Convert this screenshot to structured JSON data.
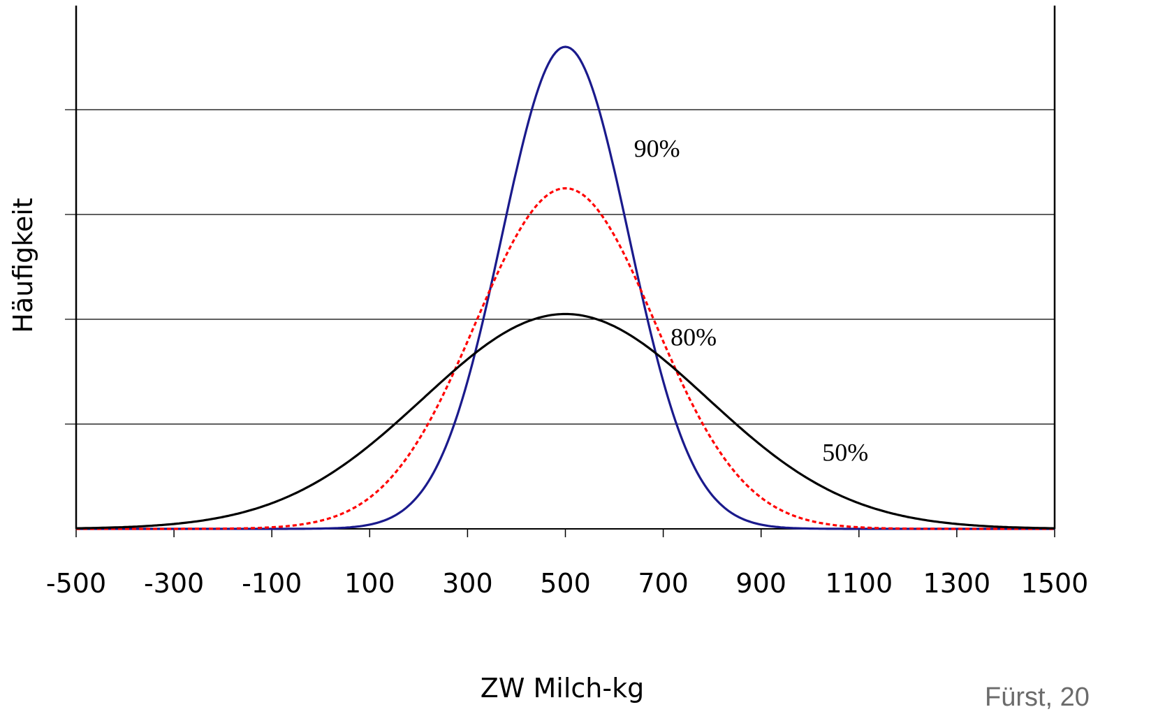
{
  "chart_data": {
    "type": "line",
    "xlabel": "ZW Milch-kg",
    "ylabel": "Häufigkeit",
    "xlim": [
      -500,
      1500
    ],
    "ylim": [
      0,
      5
    ],
    "x_ticks": [
      -500,
      -300,
      -100,
      100,
      300,
      500,
      700,
      900,
      1100,
      1300,
      1500
    ],
    "y_ticks": [
      0,
      1,
      2,
      3,
      4,
      5
    ],
    "grid": "horizontal",
    "y_tick_labels_shown": false,
    "series": [
      {
        "name": "90%",
        "color": "#1a1a8c",
        "style": "solid",
        "distribution": "normal",
        "mean": 500,
        "sd": 130,
        "peak": 4.6
      },
      {
        "name": "80%",
        "color": "#ff0000",
        "style": "dashed",
        "distribution": "normal",
        "mean": 500,
        "sd": 183,
        "peak": 3.25
      },
      {
        "name": "50%",
        "color": "#000000",
        "style": "solid",
        "distribution": "normal",
        "mean": 500,
        "sd": 291,
        "peak": 2.05
      }
    ],
    "annotations": [
      {
        "text": "90%",
        "series": "90%",
        "x": 640,
        "y": 3.55
      },
      {
        "text": "80%",
        "series": "80%",
        "x": 715,
        "y": 1.75
      },
      {
        "text": "50%",
        "series": "50%",
        "x": 1025,
        "y": 0.65
      }
    ]
  },
  "credit": "Fürst, 20"
}
